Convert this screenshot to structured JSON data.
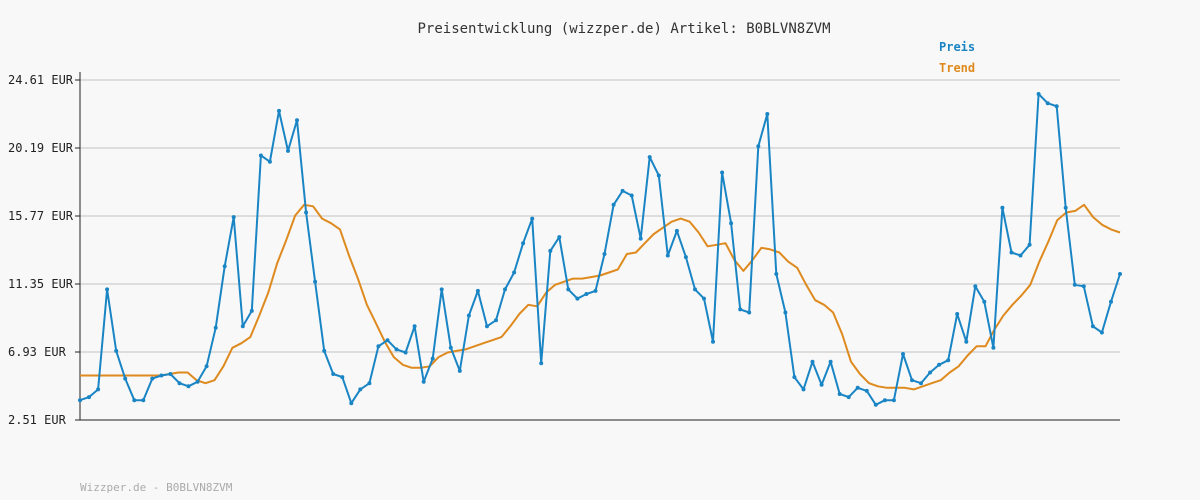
{
  "title": "Preisentwicklung (wizzper.de) Artikel: B0BLVN8ZVM",
  "footer": "Wizzper.de - B0BLVN8ZVM",
  "colors": {
    "preis": "#1a85c4",
    "trend": "#de8a1e",
    "grid": "#dddddd",
    "axis": "#222222"
  },
  "chart_data": {
    "type": "line",
    "title": "Preisentwicklung (wizzper.de) Artikel: B0BLVN8ZVM",
    "xlabel": "",
    "ylabel": "",
    "ylim": [
      2.51,
      24.61
    ],
    "yticks": [
      "2.51 EUR",
      "6.93 EUR",
      "11.35 EUR",
      "15.77 EUR",
      "20.19 EUR",
      "24.61 EUR"
    ],
    "ytick_values": [
      2.51,
      6.93,
      11.35,
      15.77,
      20.19,
      24.61
    ],
    "grid": true,
    "legend_position": "top-right",
    "series": [
      {
        "name": "Preis",
        "values": [
          3.8,
          4.0,
          4.5,
          11.0,
          7.0,
          5.2,
          3.8,
          3.8,
          5.2,
          5.4,
          5.5,
          4.9,
          4.7,
          5.0,
          6.0,
          8.5,
          12.5,
          15.7,
          8.6,
          9.6,
          19.7,
          19.3,
          22.6,
          20.0,
          22.0,
          16.0,
          11.5,
          7.0,
          5.5,
          5.3,
          3.6,
          4.5,
          4.9,
          7.3,
          7.7,
          7.1,
          6.9,
          8.6,
          5.0,
          6.5,
          11.0,
          7.2,
          5.7,
          9.3,
          10.9,
          8.6,
          9.0,
          11.0,
          12.1,
          14.0,
          15.6,
          6.2,
          13.5,
          14.4,
          11.0,
          10.4,
          10.7,
          10.9,
          13.3,
          16.5,
          17.4,
          17.1,
          14.3,
          19.6,
          18.4,
          13.2,
          14.8,
          13.1,
          11.0,
          10.4,
          7.6,
          18.6,
          15.3,
          9.7,
          9.5,
          20.3,
          22.4,
          12.0,
          9.5,
          5.3,
          4.5,
          6.3,
          4.8,
          6.3,
          4.2,
          4.0,
          4.6,
          4.4,
          3.5,
          3.8,
          3.8,
          6.8,
          5.1,
          4.9,
          5.6,
          6.1,
          6.4,
          9.4,
          7.6,
          11.2,
          10.2,
          7.2,
          16.3,
          13.4,
          13.2,
          13.9,
          23.7,
          23.1,
          22.9,
          16.3,
          11.3,
          11.2,
          8.6,
          8.2,
          10.2,
          12.0
        ]
      },
      {
        "name": "Trend",
        "values": [
          5.4,
          5.4,
          5.4,
          5.4,
          5.4,
          5.4,
          5.4,
          5.4,
          5.4,
          5.4,
          5.5,
          5.6,
          5.6,
          5.1,
          4.9,
          5.1,
          6.0,
          7.2,
          7.5,
          7.9,
          9.3,
          10.8,
          12.7,
          14.2,
          15.8,
          16.5,
          16.4,
          15.6,
          15.3,
          14.9,
          13.2,
          11.7,
          10.0,
          8.8,
          7.6,
          6.6,
          6.1,
          5.9,
          5.9,
          6.0,
          6.6,
          6.9,
          7.0,
          7.1,
          7.3,
          7.5,
          7.7,
          7.9,
          8.6,
          9.4,
          10.0,
          9.9,
          10.8,
          11.3,
          11.5,
          11.7,
          11.7,
          11.8,
          11.9,
          12.1,
          12.3,
          13.3,
          13.4,
          14.0,
          14.6,
          15.0,
          15.4,
          15.6,
          15.4,
          14.7,
          13.8,
          13.9,
          14.0,
          12.9,
          12.2,
          12.9,
          13.7,
          13.6,
          13.4,
          12.8,
          12.4,
          11.3,
          10.3,
          10.0,
          9.5,
          8.1,
          6.3,
          5.5,
          4.9,
          4.7,
          4.6,
          4.6,
          4.6,
          4.5,
          4.7,
          4.9,
          5.1,
          5.6,
          6.0,
          6.7,
          7.3,
          7.3,
          8.4,
          9.3,
          10.0,
          10.6,
          11.3,
          12.8,
          14.1,
          15.5,
          16.0,
          16.1,
          16.5,
          15.7,
          15.2,
          14.9,
          14.7
        ]
      }
    ]
  }
}
